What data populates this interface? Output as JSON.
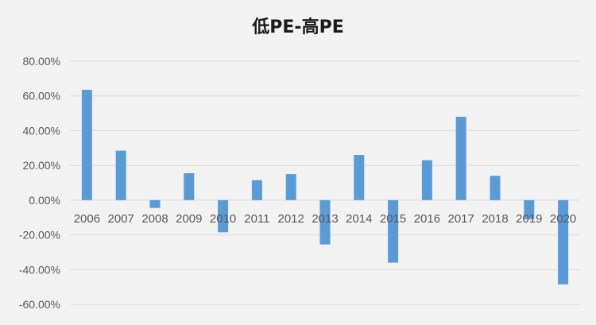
{
  "chart_data": {
    "type": "bar",
    "title": "低PE-高PE",
    "xlabel": "",
    "ylabel": "",
    "categories": [
      "2006",
      "2007",
      "2008",
      "2009",
      "2010",
      "2011",
      "2012",
      "2013",
      "2014",
      "2015",
      "2016",
      "2017",
      "2018",
      "2019",
      "2020"
    ],
    "values": [
      63.5,
      28.5,
      -4.5,
      15.5,
      -18.5,
      11.5,
      15.0,
      -25.5,
      26.0,
      -36.0,
      23.0,
      48.0,
      14.0,
      -11.0,
      -48.5
    ],
    "ylim": [
      -60,
      80
    ],
    "yticks": [
      "80.00%",
      "60.00%",
      "40.00%",
      "20.00%",
      "0.00%",
      "-20.00%",
      "-40.00%",
      "-60.00%"
    ],
    "ytick_values": [
      80,
      60,
      40,
      20,
      0,
      -20,
      -40,
      -60
    ],
    "grid": true,
    "legend": "none",
    "bar_color": "#5b9bd5"
  }
}
